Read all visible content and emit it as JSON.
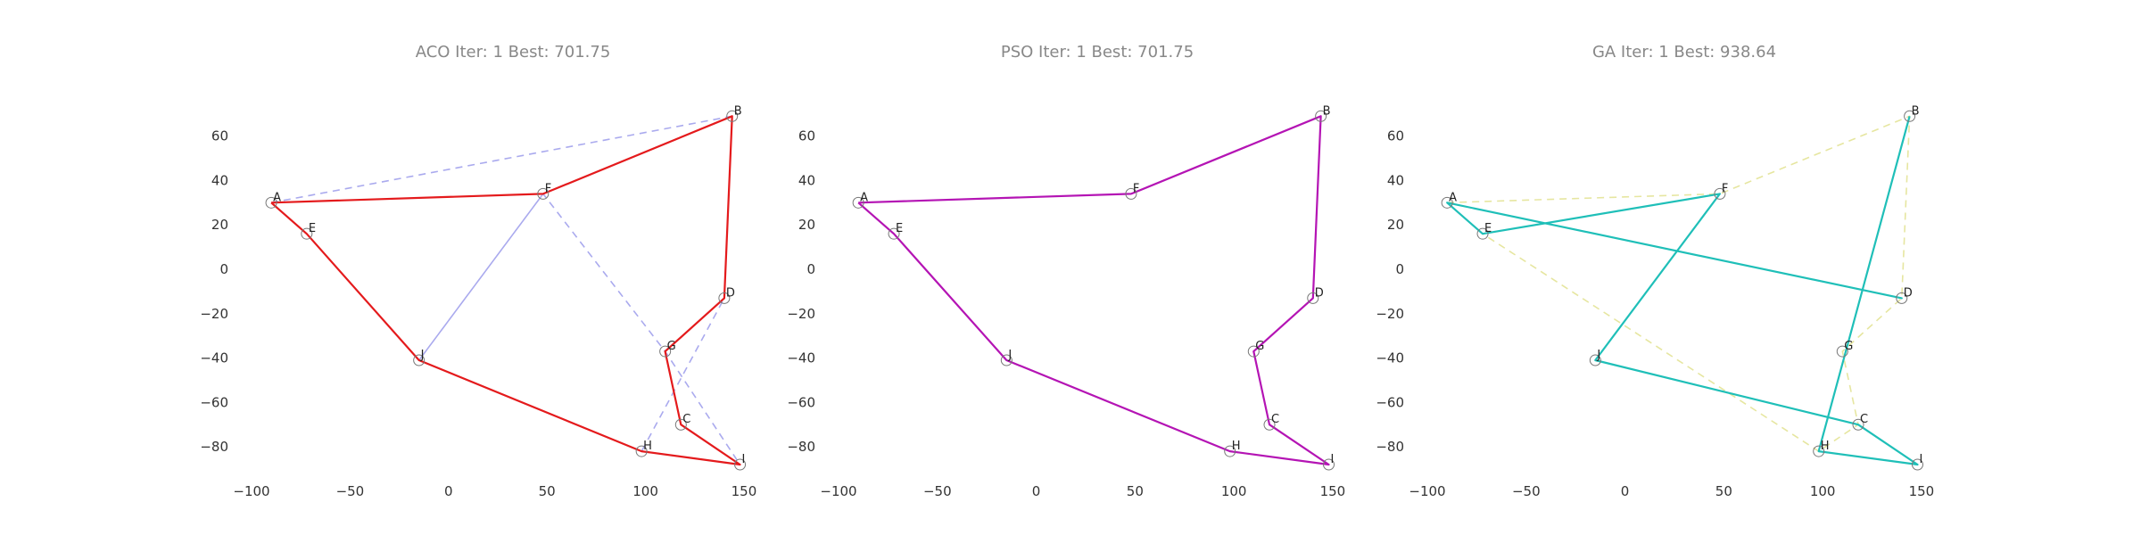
{
  "chart_data": [
    {
      "type": "line",
      "title": "ACO Iter: 1  Best: 701.75",
      "xlim": [
        -100,
        155
      ],
      "ylim": [
        -90,
        90
      ],
      "xticks": [
        "−100",
        "−50",
        "0",
        "50",
        "100",
        "150"
      ],
      "xtick_values": [
        -100,
        -50,
        0,
        50,
        100,
        150
      ],
      "yticks": [
        "60",
        "40",
        "20",
        "0",
        "−20",
        "−40",
        "−60",
        "−80"
      ],
      "ytick_values": [
        60,
        40,
        20,
        0,
        -20,
        -40,
        -60,
        -80
      ],
      "grid": false,
      "cities": [
        {
          "label": "A",
          "x": -90,
          "y": 30
        },
        {
          "label": "B",
          "x": 144,
          "y": 69
        },
        {
          "label": "C",
          "x": 118,
          "y": -70
        },
        {
          "label": "D",
          "x": 140,
          "y": -13
        },
        {
          "label": "E",
          "x": -72,
          "y": 16
        },
        {
          "label": "F",
          "x": 48,
          "y": 34
        },
        {
          "label": "G",
          "x": 110,
          "y": -37
        },
        {
          "label": "H",
          "x": 98,
          "y": -82
        },
        {
          "label": "I",
          "x": 148,
          "y": -88
        },
        {
          "label": "J",
          "x": -15,
          "y": -41
        }
      ],
      "series": [
        {
          "style": "dashed",
          "color": "#aaaaee",
          "route": [
            "A",
            "B",
            "F",
            "J",
            "F",
            "G",
            "I",
            "H",
            "D"
          ]
        },
        {
          "style": "solid",
          "color": "#e41a1c",
          "route": [
            "A",
            "F",
            "B",
            "D",
            "G",
            "C",
            "I",
            "H",
            "J",
            "E",
            "A"
          ]
        }
      ]
    },
    {
      "type": "line",
      "title": "PSO Iter: 1  Best: 701.75",
      "xlim": [
        -100,
        155
      ],
      "ylim": [
        -90,
        90
      ],
      "xticks": [
        "−100",
        "−50",
        "0",
        "50",
        "100",
        "150"
      ],
      "xtick_values": [
        -100,
        -50,
        0,
        50,
        100,
        150
      ],
      "yticks": [
        "60",
        "40",
        "20",
        "0",
        "−20",
        "−40",
        "−60",
        "−80"
      ],
      "ytick_values": [
        60,
        40,
        20,
        0,
        -20,
        -40,
        -60,
        -80
      ],
      "grid": false,
      "cities": [
        {
          "label": "A",
          "x": -90,
          "y": 30
        },
        {
          "label": "B",
          "x": 144,
          "y": 69
        },
        {
          "label": "C",
          "x": 118,
          "y": -70
        },
        {
          "label": "D",
          "x": 140,
          "y": -13
        },
        {
          "label": "E",
          "x": -72,
          "y": 16
        },
        {
          "label": "F",
          "x": 48,
          "y": 34
        },
        {
          "label": "G",
          "x": 110,
          "y": -37
        },
        {
          "label": "H",
          "x": 98,
          "y": -82
        },
        {
          "label": "I",
          "x": 148,
          "y": -88
        },
        {
          "label": "J",
          "x": -15,
          "y": -41
        }
      ],
      "series": [
        {
          "style": "solid",
          "color": "#b414b4",
          "route": [
            "A",
            "F",
            "B",
            "D",
            "G",
            "C",
            "I",
            "H",
            "J",
            "E",
            "A"
          ]
        }
      ]
    },
    {
      "type": "line",
      "title": "GA Iter: 1  Best: 938.64",
      "xlim": [
        -100,
        155
      ],
      "ylim": [
        -90,
        90
      ],
      "xticks": [
        "−100",
        "−50",
        "0",
        "50",
        "100",
        "150"
      ],
      "xtick_values": [
        -100,
        -50,
        0,
        50,
        100,
        150
      ],
      "yticks": [
        "60",
        "40",
        "20",
        "0",
        "−20",
        "−40",
        "−60",
        "−80"
      ],
      "ytick_values": [
        60,
        40,
        20,
        0,
        -20,
        -40,
        -60,
        -80
      ],
      "grid": false,
      "cities": [
        {
          "label": "A",
          "x": -90,
          "y": 30
        },
        {
          "label": "B",
          "x": 144,
          "y": 69
        },
        {
          "label": "C",
          "x": 118,
          "y": -70
        },
        {
          "label": "D",
          "x": 140,
          "y": -13
        },
        {
          "label": "E",
          "x": -72,
          "y": 16
        },
        {
          "label": "F",
          "x": 48,
          "y": 34
        },
        {
          "label": "G",
          "x": 110,
          "y": -37
        },
        {
          "label": "H",
          "x": 98,
          "y": -82
        },
        {
          "label": "I",
          "x": 148,
          "y": -88
        },
        {
          "label": "J",
          "x": -15,
          "y": -41
        }
      ],
      "series": [
        {
          "style": "dashed",
          "color": "#e6e6a0",
          "route": [
            "A",
            "F",
            "B",
            "D",
            "G",
            "C",
            "H",
            "E"
          ]
        },
        {
          "style": "solid",
          "color": "#1fbfb8",
          "route": [
            "A",
            "D",
            "A",
            "E",
            "F",
            "J",
            "C",
            "I",
            "H",
            "B"
          ]
        }
      ]
    }
  ]
}
